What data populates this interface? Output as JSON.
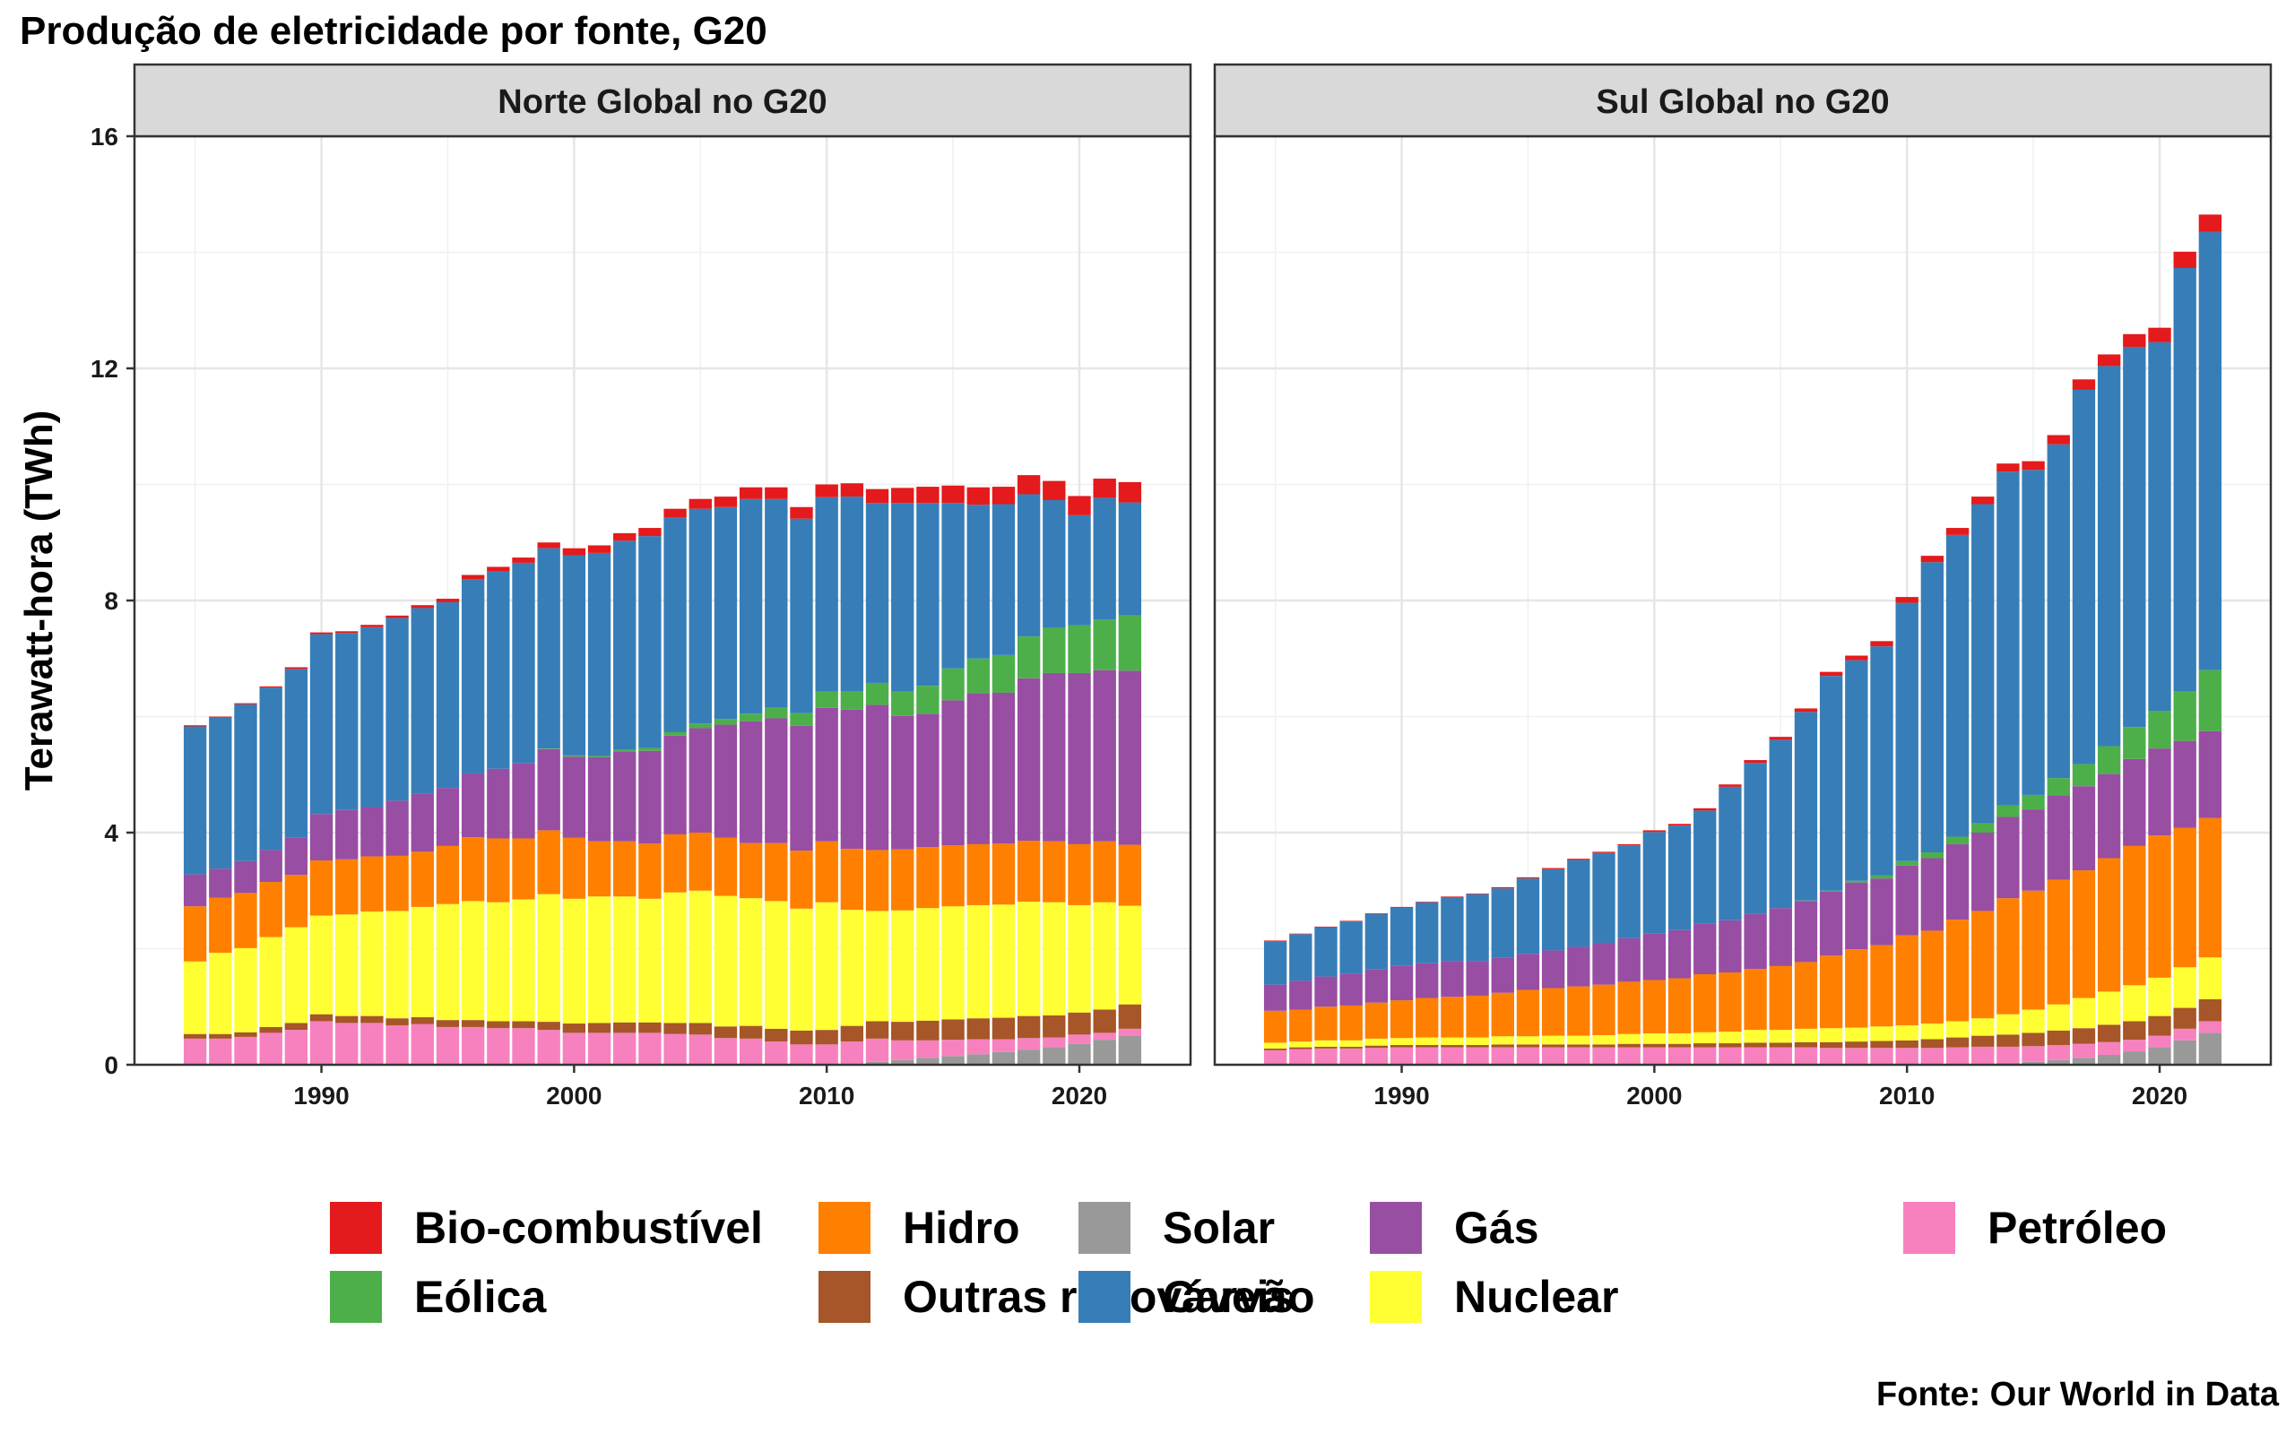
{
  "chart_data": {
    "type": "bar",
    "stacked": true,
    "title": "Produção de eletricidade por fonte, G20",
    "ylabel": "Terawatt-hora (TWh)",
    "xlabel": "",
    "ylim": [
      0,
      16
    ],
    "y_ticks": [
      0,
      4,
      8,
      12,
      16
    ],
    "x_ticks": [
      1990,
      2000,
      2010,
      2020
    ],
    "caption": "Fonte: Our World in Data",
    "legend_position": "bottom",
    "grid": true,
    "years": [
      1985,
      1986,
      1987,
      1988,
      1989,
      1990,
      1991,
      1992,
      1993,
      1994,
      1995,
      1996,
      1997,
      1998,
      1999,
      2000,
      2001,
      2002,
      2003,
      2004,
      2005,
      2006,
      2007,
      2008,
      2009,
      2010,
      2011,
      2012,
      2013,
      2014,
      2015,
      2016,
      2017,
      2018,
      2019,
      2020,
      2021,
      2022
    ],
    "legend": [
      {
        "key": "bio",
        "name": "Bio-combustível",
        "color": "#E41A1C"
      },
      {
        "key": "eolica",
        "name": "Eólica",
        "color": "#4DAF4A"
      },
      {
        "key": "hidro",
        "name": "Hidro",
        "color": "#FF7F00"
      },
      {
        "key": "outras",
        "name": "Outras renováveis",
        "color": "#A65628"
      },
      {
        "key": "solar",
        "name": "Solar",
        "color": "#999999"
      },
      {
        "key": "carvao",
        "name": "Carvão",
        "color": "#377EB8"
      },
      {
        "key": "gas",
        "name": "Gás",
        "color": "#984EA3"
      },
      {
        "key": "nuclear",
        "name": "Nuclear",
        "color": "#FFFF33"
      },
      {
        "key": "petroleo",
        "name": "Petróleo",
        "color": "#F781BF"
      }
    ],
    "stack_order": [
      "solar",
      "petroleo",
      "outras",
      "nuclear",
      "hidro",
      "gas",
      "eolica",
      "carvao",
      "bio"
    ],
    "panels": [
      {
        "name": "Norte Global no G20",
        "series": {
          "solar": [
            0,
            0,
            0,
            0,
            0,
            0,
            0,
            0,
            0,
            0,
            0,
            0,
            0,
            0,
            0,
            0,
            0,
            0,
            0,
            0,
            0,
            0,
            0,
            0,
            0,
            0.01,
            0.02,
            0.05,
            0.08,
            0.12,
            0.15,
            0.18,
            0.22,
            0.26,
            0.3,
            0.36,
            0.43,
            0.5
          ],
          "petroleo": [
            0.45,
            0.45,
            0.48,
            0.55,
            0.6,
            0.75,
            0.72,
            0.72,
            0.68,
            0.7,
            0.65,
            0.65,
            0.63,
            0.63,
            0.6,
            0.55,
            0.55,
            0.55,
            0.55,
            0.53,
            0.52,
            0.46,
            0.45,
            0.4,
            0.35,
            0.34,
            0.38,
            0.4,
            0.34,
            0.3,
            0.28,
            0.26,
            0.22,
            0.2,
            0.17,
            0.16,
            0.12,
            0.12
          ],
          "outras": [
            0.08,
            0.08,
            0.08,
            0.1,
            0.12,
            0.12,
            0.12,
            0.12,
            0.12,
            0.12,
            0.12,
            0.12,
            0.12,
            0.12,
            0.14,
            0.16,
            0.17,
            0.18,
            0.18,
            0.19,
            0.2,
            0.2,
            0.22,
            0.22,
            0.24,
            0.25,
            0.27,
            0.3,
            0.32,
            0.34,
            0.35,
            0.36,
            0.37,
            0.38,
            0.38,
            0.38,
            0.4,
            0.42
          ],
          "nuclear": [
            1.25,
            1.4,
            1.45,
            1.55,
            1.65,
            1.7,
            1.75,
            1.8,
            1.85,
            1.9,
            2.0,
            2.05,
            2.05,
            2.1,
            2.2,
            2.15,
            2.18,
            2.17,
            2.13,
            2.25,
            2.28,
            2.25,
            2.2,
            2.2,
            2.1,
            2.2,
            2.0,
            1.9,
            1.92,
            1.94,
            1.95,
            1.95,
            1.95,
            1.97,
            1.95,
            1.85,
            1.85,
            1.7
          ],
          "hidro": [
            0.95,
            0.95,
            0.95,
            0.95,
            0.9,
            0.95,
            0.95,
            0.95,
            0.95,
            0.95,
            1.0,
            1.1,
            1.1,
            1.05,
            1.1,
            1.05,
            0.95,
            0.95,
            0.95,
            1.0,
            1.0,
            1.0,
            0.95,
            1.0,
            1.0,
            1.05,
            1.05,
            1.05,
            1.05,
            1.05,
            1.05,
            1.05,
            1.05,
            1.05,
            1.05,
            1.05,
            1.05,
            1.05
          ],
          "gas": [
            0.55,
            0.5,
            0.55,
            0.55,
            0.65,
            0.8,
            0.85,
            0.85,
            0.95,
            1.0,
            1.0,
            1.1,
            1.2,
            1.3,
            1.4,
            1.4,
            1.45,
            1.55,
            1.6,
            1.7,
            1.8,
            1.95,
            2.1,
            2.15,
            2.15,
            2.3,
            2.4,
            2.5,
            2.3,
            2.3,
            2.5,
            2.6,
            2.6,
            2.8,
            2.9,
            2.95,
            2.95,
            3.0
          ],
          "eolica": [
            0,
            0,
            0,
            0,
            0,
            0,
            0,
            0,
            0,
            0,
            0,
            0,
            0,
            0,
            0.01,
            0.02,
            0.02,
            0.03,
            0.05,
            0.06,
            0.08,
            0.1,
            0.13,
            0.18,
            0.22,
            0.28,
            0.32,
            0.38,
            0.42,
            0.48,
            0.55,
            0.6,
            0.65,
            0.72,
            0.78,
            0.82,
            0.87,
            0.95
          ],
          "carvao": [
            2.55,
            2.6,
            2.7,
            2.8,
            2.9,
            3.1,
            3.05,
            3.1,
            3.15,
            3.2,
            3.2,
            3.35,
            3.4,
            3.45,
            3.45,
            3.45,
            3.5,
            3.6,
            3.65,
            3.7,
            3.7,
            3.65,
            3.7,
            3.6,
            3.35,
            3.35,
            3.35,
            3.1,
            3.25,
            3.15,
            2.85,
            2.65,
            2.6,
            2.45,
            2.2,
            1.9,
            2.1,
            1.95
          ],
          "bio": [
            0.02,
            0.02,
            0.02,
            0.02,
            0.03,
            0.03,
            0.03,
            0.04,
            0.04,
            0.05,
            0.06,
            0.07,
            0.08,
            0.09,
            0.1,
            0.12,
            0.13,
            0.13,
            0.14,
            0.15,
            0.17,
            0.18,
            0.2,
            0.2,
            0.2,
            0.22,
            0.23,
            0.24,
            0.26,
            0.28,
            0.3,
            0.3,
            0.3,
            0.33,
            0.33,
            0.33,
            0.33,
            0.35
          ]
        }
      },
      {
        "name": "Sul Global no G20",
        "series": {
          "solar": [
            0,
            0,
            0,
            0,
            0,
            0,
            0,
            0,
            0,
            0,
            0,
            0,
            0,
            0,
            0,
            0,
            0,
            0,
            0,
            0,
            0,
            0,
            0,
            0,
            0,
            0,
            0,
            0.01,
            0.02,
            0.03,
            0.05,
            0.08,
            0.12,
            0.17,
            0.23,
            0.3,
            0.42,
            0.55
          ],
          "petroleo": [
            0.25,
            0.27,
            0.28,
            0.28,
            0.29,
            0.3,
            0.3,
            0.3,
            0.3,
            0.3,
            0.3,
            0.3,
            0.3,
            0.3,
            0.3,
            0.3,
            0.3,
            0.3,
            0.3,
            0.3,
            0.3,
            0.3,
            0.29,
            0.29,
            0.29,
            0.29,
            0.29,
            0.29,
            0.29,
            0.28,
            0.27,
            0.26,
            0.24,
            0.22,
            0.2,
            0.2,
            0.2,
            0.2
          ],
          "outras": [
            0.03,
            0.03,
            0.03,
            0.03,
            0.04,
            0.04,
            0.04,
            0.04,
            0.04,
            0.05,
            0.05,
            0.05,
            0.05,
            0.05,
            0.06,
            0.06,
            0.06,
            0.07,
            0.07,
            0.08,
            0.08,
            0.09,
            0.1,
            0.11,
            0.12,
            0.13,
            0.15,
            0.17,
            0.19,
            0.21,
            0.23,
            0.25,
            0.27,
            0.3,
            0.32,
            0.34,
            0.36,
            0.38
          ],
          "nuclear": [
            0.1,
            0.1,
            0.11,
            0.11,
            0.12,
            0.12,
            0.13,
            0.13,
            0.13,
            0.14,
            0.14,
            0.15,
            0.15,
            0.16,
            0.17,
            0.18,
            0.18,
            0.19,
            0.2,
            0.22,
            0.22,
            0.23,
            0.24,
            0.24,
            0.25,
            0.26,
            0.27,
            0.28,
            0.3,
            0.35,
            0.4,
            0.45,
            0.52,
            0.57,
            0.62,
            0.66,
            0.7,
            0.72
          ],
          "hidro": [
            0.55,
            0.55,
            0.58,
            0.6,
            0.62,
            0.65,
            0.68,
            0.7,
            0.72,
            0.75,
            0.8,
            0.82,
            0.85,
            0.87,
            0.9,
            0.92,
            0.95,
            1.0,
            1.02,
            1.05,
            1.1,
            1.15,
            1.25,
            1.35,
            1.4,
            1.55,
            1.6,
            1.75,
            1.85,
            2.0,
            2.05,
            2.15,
            2.2,
            2.3,
            2.4,
            2.45,
            2.4,
            2.4
          ],
          "gas": [
            0.45,
            0.5,
            0.52,
            0.55,
            0.58,
            0.6,
            0.6,
            0.62,
            0.6,
            0.6,
            0.62,
            0.65,
            0.68,
            0.72,
            0.75,
            0.8,
            0.83,
            0.87,
            0.9,
            0.95,
            1.0,
            1.05,
            1.1,
            1.15,
            1.15,
            1.2,
            1.25,
            1.3,
            1.35,
            1.4,
            1.4,
            1.45,
            1.45,
            1.45,
            1.5,
            1.5,
            1.5,
            1.5
          ],
          "eolica": [
            0,
            0,
            0,
            0,
            0,
            0,
            0,
            0,
            0,
            0,
            0,
            0,
            0,
            0,
            0,
            0,
            0,
            0,
            0,
            0,
            0,
            0.01,
            0.02,
            0.03,
            0.05,
            0.08,
            0.1,
            0.13,
            0.16,
            0.2,
            0.25,
            0.3,
            0.38,
            0.48,
            0.55,
            0.65,
            0.85,
            1.05
          ],
          "carvao": [
            0.75,
            0.8,
            0.85,
            0.9,
            0.95,
            1.0,
            1.05,
            1.1,
            1.15,
            1.2,
            1.3,
            1.4,
            1.5,
            1.55,
            1.6,
            1.75,
            1.8,
            1.95,
            2.3,
            2.6,
            2.9,
            3.25,
            3.7,
            3.8,
            3.95,
            4.45,
            5.0,
            5.2,
            5.5,
            5.75,
            5.6,
            5.75,
            6.45,
            6.55,
            6.55,
            6.35,
            7.3,
            7.55
          ],
          "bio": [
            0.01,
            0.01,
            0.01,
            0.01,
            0.01,
            0.01,
            0.01,
            0.01,
            0.01,
            0.02,
            0.02,
            0.02,
            0.02,
            0.02,
            0.02,
            0.03,
            0.03,
            0.04,
            0.04,
            0.05,
            0.05,
            0.06,
            0.07,
            0.08,
            0.09,
            0.1,
            0.11,
            0.12,
            0.13,
            0.14,
            0.15,
            0.16,
            0.18,
            0.2,
            0.22,
            0.25,
            0.28,
            0.3
          ]
        }
      }
    ]
  }
}
